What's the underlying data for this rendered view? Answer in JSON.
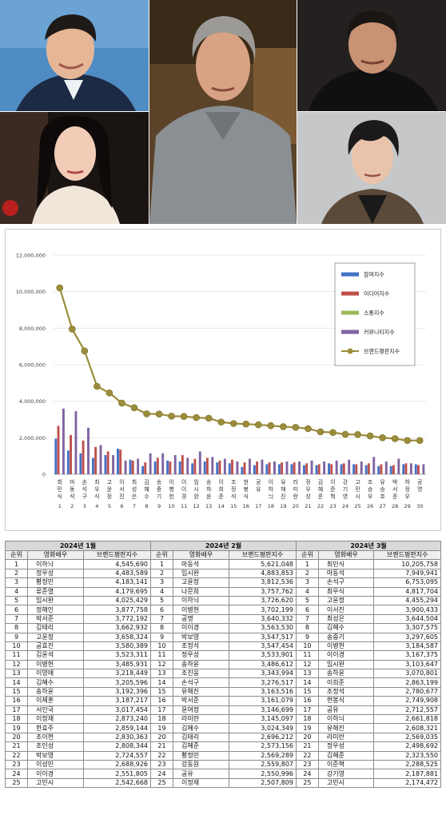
{
  "colors": {
    "participation": "#4472c4",
    "media": "#c0504d",
    "communication": "#9bbb59",
    "community": "#8064a2",
    "brand": "#9b8d3a",
    "table_month_header": "#d9d9d9"
  },
  "photos": [
    {
      "name": "actor-photo-top-left"
    },
    {
      "name": "actor-photo-center"
    },
    {
      "name": "actor-photo-top-right"
    },
    {
      "name": "actress-photo-bottom-left"
    },
    {
      "name": "actor-photo-bottom-right"
    }
  ],
  "chart_data": {
    "type": "bar",
    "title": "",
    "xlabel": "",
    "ylabel": "",
    "ylim": [
      0,
      12000000
    ],
    "yticks": [
      "0",
      "2,000,000",
      "4,000,000",
      "6,000,000",
      "8,000,000",
      "10,000,000",
      "12,000,000"
    ],
    "grid": true,
    "legend_position": "right",
    "categories": [
      "최민식",
      "마동석",
      "손석구",
      "최우식",
      "고윤정",
      "이서진",
      "최성은",
      "김혜수",
      "송중기",
      "이병헌",
      "이이경",
      "임시완",
      "송하윤",
      "이희준",
      "조정석",
      "현봉식",
      "공유",
      "이하늬",
      "유해진",
      "라미란",
      "정우성",
      "김혜준",
      "이준혁",
      "강기영",
      "고민시",
      "조승우",
      "유승호",
      "박서준",
      "하정우",
      "공명"
    ],
    "category_numbers": [
      "1",
      "2",
      "3",
      "4",
      "5",
      "6",
      "7",
      "8",
      "9",
      "10",
      "11",
      "12",
      "13",
      "14",
      "15",
      "16",
      "17",
      "18",
      "19",
      "20",
      "21",
      "22",
      "23",
      "24",
      "25",
      "26",
      "27",
      "28",
      "29",
      "30"
    ],
    "series": [
      {
        "name": "참여지수",
        "kind": "bar",
        "values": [
          1950000,
          1300000,
          1150000,
          900000,
          1050000,
          1400000,
          800000,
          450000,
          700000,
          750000,
          700000,
          600000,
          700000,
          650000,
          600000,
          400000,
          500000,
          550000,
          550000,
          550000,
          500000,
          500000,
          600000,
          550000,
          550000,
          500000,
          450000,
          450000,
          550000,
          550000
        ]
      },
      {
        "name": "미디어지수",
        "kind": "bar",
        "values": [
          2650000,
          2150000,
          1850000,
          1500000,
          1250000,
          1350000,
          750000,
          650000,
          900000,
          700000,
          1050000,
          850000,
          900000,
          750000,
          800000,
          650000,
          700000,
          650000,
          650000,
          650000,
          600000,
          550000,
          550000,
          600000,
          550000,
          600000,
          550000,
          500000,
          600000,
          500000
        ]
      },
      {
        "name": "소통지수",
        "kind": "bar",
        "values": [
          0,
          0,
          0,
          0,
          0,
          0,
          0,
          0,
          0,
          0,
          0,
          0,
          0,
          0,
          0,
          0,
          0,
          0,
          0,
          0,
          0,
          0,
          0,
          0,
          0,
          0,
          0,
          0,
          0,
          0
        ]
      },
      {
        "name": "커뮤니티지수",
        "kind": "bar",
        "values": [
          3600000,
          3450000,
          2550000,
          1600000,
          1050000,
          750000,
          850000,
          1150000,
          1150000,
          1050000,
          900000,
          1250000,
          950000,
          850000,
          700000,
          850000,
          800000,
          700000,
          700000,
          700000,
          750000,
          700000,
          750000,
          800000,
          700000,
          950000,
          700000,
          850000,
          600000,
          550000
        ]
      },
      {
        "name": "브랜드평판지수",
        "kind": "line",
        "values": [
          10205758,
          7949941,
          6753095,
          4817704,
          4455294,
          3900433,
          3644504,
          3307575,
          3297605,
          3184587,
          3167375,
          3103647,
          3070801,
          2863199,
          2780677,
          2749908,
          2712557,
          2661818,
          2608321,
          2569035,
          2498692,
          2323550,
          2288525,
          2187881,
          2174472,
          2100000,
          2000000,
          1950000,
          1850000,
          1850000
        ]
      }
    ]
  },
  "tables": [
    {
      "month": "2024년 1월",
      "headers": [
        "순위",
        "영화배우",
        "브랜드평판지수"
      ],
      "rows": [
        [
          "1",
          "이하늬",
          "4,545,690"
        ],
        [
          "2",
          "정우성",
          "4,483,589"
        ],
        [
          "3",
          "황정민",
          "4,183,141"
        ],
        [
          "4",
          "류준열",
          "4,179,695"
        ],
        [
          "5",
          "임시완",
          "4,025,429"
        ],
        [
          "6",
          "정해인",
          "3,877,758"
        ],
        [
          "7",
          "박서준",
          "3,772,192"
        ],
        [
          "8",
          "김태리",
          "3,662,932"
        ],
        [
          "9",
          "고윤정",
          "3,658,324"
        ],
        [
          "10",
          "공효진",
          "3,580,389"
        ],
        [
          "11",
          "김윤석",
          "3,523,311"
        ],
        [
          "12",
          "이병헌",
          "3,485,931"
        ],
        [
          "13",
          "이영애",
          "3,218,449"
        ],
        [
          "14",
          "김혜수",
          "3,205,596"
        ],
        [
          "15",
          "송하윤",
          "3,192,396"
        ],
        [
          "16",
          "이제훈",
          "3,187,217"
        ],
        [
          "17",
          "서인국",
          "3,017,454"
        ],
        [
          "18",
          "이정재",
          "2,873,240"
        ],
        [
          "19",
          "한효주",
          "2,859,144"
        ],
        [
          "20",
          "조이현",
          "2,830,363"
        ],
        [
          "21",
          "조인성",
          "2,808,344"
        ],
        [
          "22",
          "박보영",
          "2,724,557"
        ],
        [
          "23",
          "이성민",
          "2,688,926"
        ],
        [
          "24",
          "이이경",
          "2,551,805"
        ],
        [
          "25",
          "고민시",
          "2,542,668"
        ]
      ]
    },
    {
      "month": "2024년 2월",
      "headers": [
        "순위",
        "영화배우",
        "브랜드평판지수"
      ],
      "rows": [
        [
          "1",
          "마동석",
          "5,621,048"
        ],
        [
          "2",
          "임시완",
          "4,883,853"
        ],
        [
          "3",
          "고윤정",
          "3,812,536"
        ],
        [
          "4",
          "나문희",
          "3,757,762"
        ],
        [
          "5",
          "이하늬",
          "3,726,620"
        ],
        [
          "6",
          "이병헌",
          "3,702,199"
        ],
        [
          "7",
          "공명",
          "3,640,332"
        ],
        [
          "8",
          "이이경",
          "3,563,530"
        ],
        [
          "9",
          "박보영",
          "3,547,517"
        ],
        [
          "10",
          "조정석",
          "3,547,454"
        ],
        [
          "11",
          "정우성",
          "3,533,901"
        ],
        [
          "12",
          "송하윤",
          "3,486,612"
        ],
        [
          "13",
          "조진웅",
          "3,343,994"
        ],
        [
          "14",
          "손석구",
          "3,276,517"
        ],
        [
          "15",
          "유해진",
          "3,163,516"
        ],
        [
          "16",
          "박서준",
          "3,161,079"
        ],
        [
          "17",
          "윤여정",
          "3,146,699"
        ],
        [
          "18",
          "라미란",
          "3,145,097"
        ],
        [
          "19",
          "김혜수",
          "3,024,349"
        ],
        [
          "20",
          "김태리",
          "2,696,212"
        ],
        [
          "21",
          "김혜준",
          "2,573,156"
        ],
        [
          "22",
          "황정민",
          "2,569,289"
        ],
        [
          "23",
          "강동원",
          "2,559,807"
        ],
        [
          "24",
          "공유",
          "2,550,996"
        ],
        [
          "25",
          "이정재",
          "2,507,809"
        ]
      ]
    },
    {
      "month": "2024년 3월",
      "headers": [
        "순위",
        "영화배우",
        "브랜드평판지수"
      ],
      "rows": [
        [
          "1",
          "최민식",
          "10,205,758"
        ],
        [
          "2",
          "마동석",
          "7,949,941"
        ],
        [
          "3",
          "손석구",
          "6,753,095"
        ],
        [
          "4",
          "최우식",
          "4,817,704"
        ],
        [
          "5",
          "고윤정",
          "4,455,294"
        ],
        [
          "6",
          "이서진",
          "3,900,433"
        ],
        [
          "7",
          "최성은",
          "3,644,504"
        ],
        [
          "8",
          "김혜수",
          "3,307,575"
        ],
        [
          "9",
          "송중기",
          "3,297,605"
        ],
        [
          "10",
          "이병헌",
          "3,184,587"
        ],
        [
          "11",
          "이이경",
          "3,167,375"
        ],
        [
          "12",
          "임시완",
          "3,103,647"
        ],
        [
          "13",
          "송하윤",
          "3,070,801"
        ],
        [
          "14",
          "이희준",
          "2,863,199"
        ],
        [
          "15",
          "조정석",
          "2,780,677"
        ],
        [
          "16",
          "현봉식",
          "2,749,908"
        ],
        [
          "17",
          "공유",
          "2,712,557"
        ],
        [
          "18",
          "이하늬",
          "2,661,818"
        ],
        [
          "19",
          "유해진",
          "2,608,321"
        ],
        [
          "20",
          "라미란",
          "2,569,035"
        ],
        [
          "21",
          "정우성",
          "2,498,692"
        ],
        [
          "22",
          "김혜준",
          "2,323,550"
        ],
        [
          "23",
          "이준혁",
          "2,288,525"
        ],
        [
          "24",
          "강기영",
          "2,187,881"
        ],
        [
          "25",
          "고민시",
          "2,174,472"
        ]
      ]
    }
  ]
}
